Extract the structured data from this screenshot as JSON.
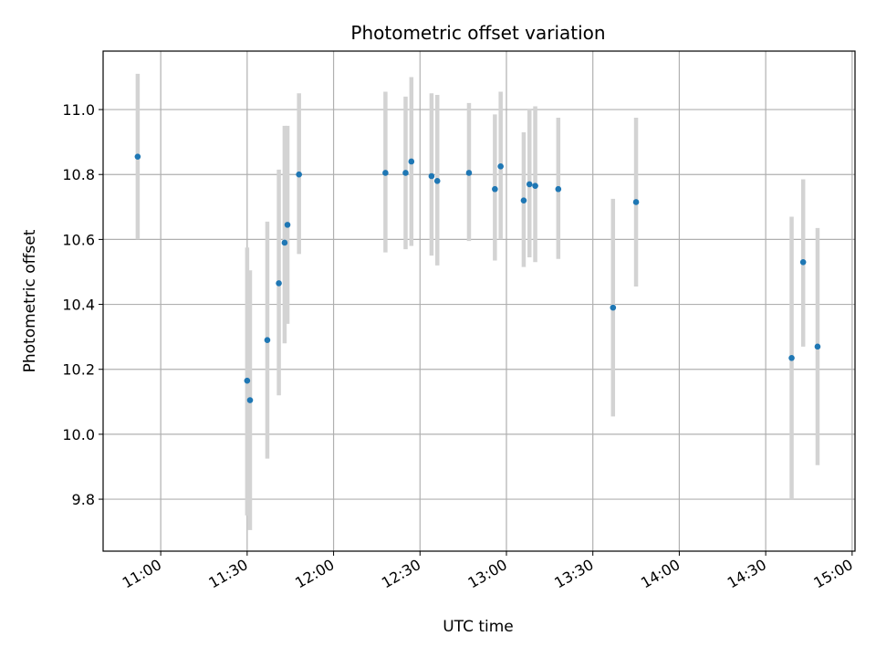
{
  "chart_data": {
    "type": "scatter",
    "title": "Photometric offset variation",
    "xlabel": "UTC time",
    "ylabel": "Photometric offset",
    "grid": true,
    "x_unit": "UTC HH:MM",
    "xlim": [
      "10:40",
      "15:01"
    ],
    "ylim": [
      9.64,
      11.18
    ],
    "x_ticks": [
      "11:00",
      "11:30",
      "12:00",
      "12:30",
      "13:00",
      "13:30",
      "14:00",
      "14:30",
      "15:00"
    ],
    "y_ticks": [
      9.8,
      10.0,
      10.2,
      10.4,
      10.6,
      10.8,
      11.0
    ],
    "y_tick_labels": [
      "9.8",
      "10.0",
      "10.2",
      "10.4",
      "10.6",
      "10.8",
      "11.0"
    ],
    "point_color": "#1f77b4",
    "errorbar_color": "#d3d3d3",
    "points": [
      {
        "x": "10:52",
        "y": 10.855,
        "low": 10.6,
        "high": 11.11
      },
      {
        "x": "11:30",
        "y": 10.165,
        "low": 9.75,
        "high": 10.575
      },
      {
        "x": "11:31",
        "y": 10.105,
        "low": 9.705,
        "high": 10.505
      },
      {
        "x": "11:37",
        "y": 10.29,
        "low": 9.925,
        "high": 10.655
      },
      {
        "x": "11:41",
        "y": 10.465,
        "low": 10.12,
        "high": 10.815
      },
      {
        "x": "11:43",
        "y": 10.59,
        "low": 10.28,
        "high": 10.95
      },
      {
        "x": "11:44",
        "y": 10.645,
        "low": 10.34,
        "high": 10.95
      },
      {
        "x": "11:48",
        "y": 10.8,
        "low": 10.555,
        "high": 11.05
      },
      {
        "x": "12:18",
        "y": 10.805,
        "low": 10.56,
        "high": 11.055
      },
      {
        "x": "12:25",
        "y": 10.805,
        "low": 10.57,
        "high": 11.04
      },
      {
        "x": "12:27",
        "y": 10.84,
        "low": 10.58,
        "high": 11.1
      },
      {
        "x": "12:34",
        "y": 10.795,
        "low": 10.55,
        "high": 11.05
      },
      {
        "x": "12:36",
        "y": 10.78,
        "low": 10.52,
        "high": 11.045
      },
      {
        "x": "12:47",
        "y": 10.805,
        "low": 10.595,
        "high": 11.02
      },
      {
        "x": "12:56",
        "y": 10.755,
        "low": 10.535,
        "high": 10.985
      },
      {
        "x": "12:58",
        "y": 10.825,
        "low": 10.6,
        "high": 11.055
      },
      {
        "x": "13:06",
        "y": 10.72,
        "low": 10.515,
        "high": 10.93
      },
      {
        "x": "13:08",
        "y": 10.77,
        "low": 10.545,
        "high": 11.0
      },
      {
        "x": "13:10",
        "y": 10.765,
        "low": 10.53,
        "high": 11.01
      },
      {
        "x": "13:18",
        "y": 10.755,
        "low": 10.54,
        "high": 10.975
      },
      {
        "x": "13:37",
        "y": 10.39,
        "low": 10.055,
        "high": 10.725
      },
      {
        "x": "13:45",
        "y": 10.715,
        "low": 10.455,
        "high": 10.975
      },
      {
        "x": "14:39",
        "y": 10.235,
        "low": 9.8,
        "high": 10.67
      },
      {
        "x": "14:43",
        "y": 10.53,
        "low": 10.27,
        "high": 10.785
      },
      {
        "x": "14:48",
        "y": 10.27,
        "low": 9.905,
        "high": 10.635
      }
    ]
  }
}
